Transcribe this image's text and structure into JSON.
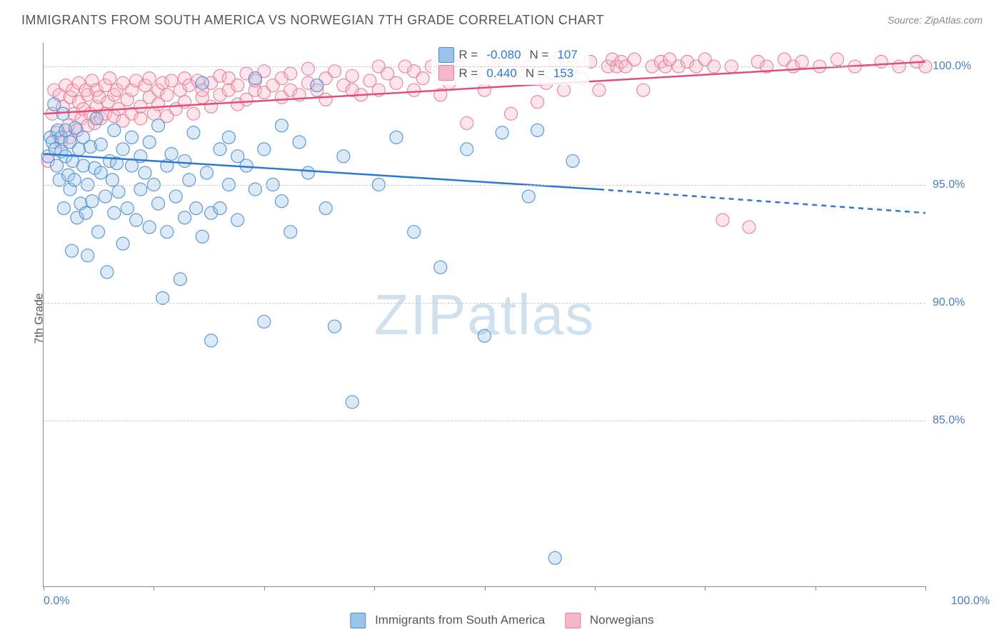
{
  "title": "IMMIGRANTS FROM SOUTH AMERICA VS NORWEGIAN 7TH GRADE CORRELATION CHART",
  "source_label": "Source:",
  "source_value": "ZipAtlas.com",
  "watermark": "ZIPatlas",
  "yaxis_title": "7th Grade",
  "chart": {
    "type": "scatter",
    "background_color": "#ffffff",
    "grid_color": "#cccccc",
    "axis_color": "#888888",
    "xlim": [
      0,
      100
    ],
    "ylim": [
      78,
      101
    ],
    "xtick_positions": [
      0,
      12.5,
      25,
      37.5,
      50,
      62.5,
      75,
      87.5,
      100
    ],
    "xtick_labels_visible": {
      "0": "0.0%",
      "100": "100.0%"
    },
    "ytick_positions": [
      85,
      90,
      95,
      100
    ],
    "ytick_labels": {
      "85": "85.0%",
      "90": "90.0%",
      "95": "95.0%",
      "100": "100.0%"
    },
    "tick_label_color": "#4a7ebb",
    "tick_label_fontsize": 16,
    "marker_radius": 9,
    "marker_fill_opacity": 0.35,
    "marker_stroke_opacity": 0.9,
    "marker_stroke_width": 1.2,
    "series": [
      {
        "id": "immigrants_sa",
        "label": "Immigrants from South America",
        "color_fill": "#9cc3e8",
        "color_stroke": "#4a8fd3",
        "trend": {
          "solid_from_x": 0,
          "solid_to_x": 63,
          "dashed_to_x": 100,
          "y_start": 96.3,
          "y_at_solid_end": 94.8,
          "y_end": 93.8,
          "stroke": "#2e78d2",
          "width": 2.5
        },
        "correlation": {
          "R_label": "R =",
          "R": "-0.080",
          "N_label": "N =",
          "N": "107"
        },
        "points": [
          [
            0.5,
            96.2
          ],
          [
            0.8,
            97.0
          ],
          [
            1.0,
            96.8
          ],
          [
            1.2,
            98.4
          ],
          [
            1.3,
            96.5
          ],
          [
            1.5,
            95.8
          ],
          [
            1.6,
            97.3
          ],
          [
            1.8,
            95.2
          ],
          [
            2.0,
            97.0
          ],
          [
            2.0,
            96.4
          ],
          [
            2.2,
            98.0
          ],
          [
            2.3,
            94.0
          ],
          [
            2.5,
            96.2
          ],
          [
            2.5,
            97.3
          ],
          [
            2.8,
            95.4
          ],
          [
            3.0,
            96.8
          ],
          [
            3.0,
            94.8
          ],
          [
            3.2,
            92.2
          ],
          [
            3.3,
            96.0
          ],
          [
            3.5,
            95.2
          ],
          [
            3.6,
            97.4
          ],
          [
            3.8,
            93.6
          ],
          [
            4.0,
            96.5
          ],
          [
            4.2,
            94.2
          ],
          [
            4.5,
            95.8
          ],
          [
            4.5,
            97.0
          ],
          [
            4.8,
            93.8
          ],
          [
            5.0,
            92.0
          ],
          [
            5.0,
            95.0
          ],
          [
            5.3,
            96.6
          ],
          [
            5.5,
            94.3
          ],
          [
            5.8,
            95.7
          ],
          [
            6.0,
            97.8
          ],
          [
            6.2,
            93.0
          ],
          [
            6.5,
            95.5
          ],
          [
            6.5,
            96.7
          ],
          [
            7.0,
            94.5
          ],
          [
            7.2,
            91.3
          ],
          [
            7.5,
            96.0
          ],
          [
            7.8,
            95.2
          ],
          [
            8.0,
            97.3
          ],
          [
            8.0,
            93.8
          ],
          [
            8.3,
            95.9
          ],
          [
            8.5,
            94.7
          ],
          [
            9.0,
            96.5
          ],
          [
            9.0,
            92.5
          ],
          [
            9.5,
            94.0
          ],
          [
            10.0,
            95.8
          ],
          [
            10.0,
            97.0
          ],
          [
            10.5,
            93.5
          ],
          [
            11.0,
            96.2
          ],
          [
            11.0,
            94.8
          ],
          [
            11.5,
            95.5
          ],
          [
            12.0,
            93.2
          ],
          [
            12.0,
            96.8
          ],
          [
            12.5,
            95.0
          ],
          [
            13.0,
            97.5
          ],
          [
            13.0,
            94.2
          ],
          [
            13.5,
            90.2
          ],
          [
            14.0,
            95.8
          ],
          [
            14.0,
            93.0
          ],
          [
            14.5,
            96.3
          ],
          [
            15.0,
            94.5
          ],
          [
            15.5,
            91.0
          ],
          [
            16.0,
            96.0
          ],
          [
            16.0,
            93.6
          ],
          [
            16.5,
            95.2
          ],
          [
            17.0,
            97.2
          ],
          [
            17.3,
            94.0
          ],
          [
            18.0,
            92.8
          ],
          [
            18.0,
            99.3
          ],
          [
            18.5,
            95.5
          ],
          [
            19.0,
            93.8
          ],
          [
            19.0,
            88.4
          ],
          [
            20.0,
            96.5
          ],
          [
            20.0,
            94.0
          ],
          [
            21.0,
            95.0
          ],
          [
            21.0,
            97.0
          ],
          [
            22.0,
            93.5
          ],
          [
            22.0,
            96.2
          ],
          [
            23.0,
            95.8
          ],
          [
            24.0,
            94.8
          ],
          [
            24.0,
            99.5
          ],
          [
            25.0,
            96.5
          ],
          [
            25.0,
            89.2
          ],
          [
            26.0,
            95.0
          ],
          [
            27.0,
            97.5
          ],
          [
            27.0,
            94.3
          ],
          [
            28.0,
            93.0
          ],
          [
            29.0,
            96.8
          ],
          [
            30.0,
            95.5
          ],
          [
            31.0,
            99.2
          ],
          [
            32.0,
            94.0
          ],
          [
            33.0,
            89.0
          ],
          [
            34.0,
            96.2
          ],
          [
            35.0,
            85.8
          ],
          [
            38.0,
            95.0
          ],
          [
            40.0,
            97.0
          ],
          [
            42.0,
            93.0
          ],
          [
            45.0,
            91.5
          ],
          [
            48.0,
            96.5
          ],
          [
            50.0,
            88.6
          ],
          [
            52.0,
            97.2
          ],
          [
            55.0,
            94.5
          ],
          [
            56.0,
            97.3
          ],
          [
            58.0,
            79.2
          ],
          [
            60.0,
            96.0
          ]
        ]
      },
      {
        "id": "norwegians",
        "label": "Norwegians",
        "color_fill": "#f5b8c8",
        "color_stroke": "#e77a9a",
        "trend": {
          "solid_from_x": 0,
          "solid_to_x": 100,
          "dashed_to_x": 100,
          "y_start": 98.0,
          "y_at_solid_end": 100.2,
          "y_end": 100.2,
          "stroke": "#e04f7a",
          "width": 2.5
        },
        "correlation": {
          "R_label": "R =",
          "R": "0.440",
          "N_label": "N =",
          "N": "153"
        },
        "points": [
          [
            0.5,
            96.0
          ],
          [
            1.0,
            98.0
          ],
          [
            1.2,
            99.0
          ],
          [
            1.5,
            97.2
          ],
          [
            1.8,
            98.8
          ],
          [
            2.0,
            96.8
          ],
          [
            2.2,
            98.3
          ],
          [
            2.5,
            99.2
          ],
          [
            2.8,
            97.5
          ],
          [
            3.0,
            98.7
          ],
          [
            3.0,
            97.0
          ],
          [
            3.3,
            99.0
          ],
          [
            3.5,
            98.0
          ],
          [
            3.8,
            97.3
          ],
          [
            4.0,
            98.5
          ],
          [
            4.0,
            99.3
          ],
          [
            4.3,
            97.8
          ],
          [
            4.5,
            98.2
          ],
          [
            4.8,
            99.0
          ],
          [
            5.0,
            97.5
          ],
          [
            5.0,
            98.8
          ],
          [
            5.3,
            98.0
          ],
          [
            5.5,
            99.4
          ],
          [
            5.8,
            97.6
          ],
          [
            6.0,
            98.3
          ],
          [
            6.0,
            99.0
          ],
          [
            6.3,
            98.7
          ],
          [
            6.5,
            97.8
          ],
          [
            7.0,
            99.2
          ],
          [
            7.0,
            98.0
          ],
          [
            7.3,
            98.5
          ],
          [
            7.5,
            99.5
          ],
          [
            8.0,
            97.9
          ],
          [
            8.0,
            98.8
          ],
          [
            8.3,
            99.0
          ],
          [
            8.5,
            98.2
          ],
          [
            9.0,
            99.3
          ],
          [
            9.0,
            97.7
          ],
          [
            9.5,
            98.6
          ],
          [
            10.0,
            99.0
          ],
          [
            10.0,
            98.0
          ],
          [
            10.5,
            99.4
          ],
          [
            11.0,
            98.3
          ],
          [
            11.0,
            97.8
          ],
          [
            11.5,
            99.2
          ],
          [
            12.0,
            98.7
          ],
          [
            12.0,
            99.5
          ],
          [
            12.5,
            98.0
          ],
          [
            13.0,
            99.0
          ],
          [
            13.0,
            98.4
          ],
          [
            13.5,
            99.3
          ],
          [
            14.0,
            97.9
          ],
          [
            14.0,
            98.8
          ],
          [
            14.5,
            99.4
          ],
          [
            15.0,
            98.2
          ],
          [
            15.5,
            99.0
          ],
          [
            16.0,
            99.5
          ],
          [
            16.0,
            98.5
          ],
          [
            16.5,
            99.2
          ],
          [
            17.0,
            98.0
          ],
          [
            17.5,
            99.4
          ],
          [
            18.0,
            98.7
          ],
          [
            18.0,
            99.0
          ],
          [
            19.0,
            99.3
          ],
          [
            19.0,
            98.3
          ],
          [
            20.0,
            99.6
          ],
          [
            20.0,
            98.8
          ],
          [
            21.0,
            99.0
          ],
          [
            21.0,
            99.5
          ],
          [
            22.0,
            98.4
          ],
          [
            22.0,
            99.2
          ],
          [
            23.0,
            99.7
          ],
          [
            23.0,
            98.6
          ],
          [
            24.0,
            99.0
          ],
          [
            24.0,
            99.4
          ],
          [
            25.0,
            98.9
          ],
          [
            25.0,
            99.8
          ],
          [
            26.0,
            99.2
          ],
          [
            27.0,
            99.5
          ],
          [
            27.0,
            98.7
          ],
          [
            28.0,
            99.0
          ],
          [
            28.0,
            99.7
          ],
          [
            29.0,
            98.8
          ],
          [
            30.0,
            99.3
          ],
          [
            30.0,
            99.9
          ],
          [
            31.0,
            99.0
          ],
          [
            32.0,
            99.5
          ],
          [
            32.0,
            98.6
          ],
          [
            33.0,
            99.8
          ],
          [
            34.0,
            99.2
          ],
          [
            35.0,
            99.0
          ],
          [
            35.0,
            99.6
          ],
          [
            36.0,
            98.8
          ],
          [
            37.0,
            99.4
          ],
          [
            38.0,
            100.0
          ],
          [
            38.0,
            99.0
          ],
          [
            39.0,
            99.7
          ],
          [
            40.0,
            99.3
          ],
          [
            41.0,
            100.0
          ],
          [
            42.0,
            99.0
          ],
          [
            42.0,
            99.8
          ],
          [
            43.0,
            99.5
          ],
          [
            44.0,
            100.0
          ],
          [
            45.0,
            98.8
          ],
          [
            46.0,
            99.3
          ],
          [
            47.0,
            100.0
          ],
          [
            48.0,
            97.6
          ],
          [
            49.0,
            99.8
          ],
          [
            50.0,
            99.0
          ],
          [
            51.0,
            100.2
          ],
          [
            52.0,
            99.5
          ],
          [
            53.0,
            98.0
          ],
          [
            54.0,
            99.8
          ],
          [
            55.0,
            100.0
          ],
          [
            56.0,
            98.5
          ],
          [
            57.0,
            99.3
          ],
          [
            58.0,
            100.2
          ],
          [
            59.0,
            99.0
          ],
          [
            60.0,
            100.0
          ],
          [
            61.0,
            99.5
          ],
          [
            62.0,
            100.2
          ],
          [
            63.0,
            99.0
          ],
          [
            64.0,
            100.0
          ],
          [
            64.5,
            100.3
          ],
          [
            65.0,
            100.0
          ],
          [
            65.5,
            100.2
          ],
          [
            66.0,
            100.0
          ],
          [
            67.0,
            100.3
          ],
          [
            68.0,
            99.0
          ],
          [
            69.0,
            100.0
          ],
          [
            70.0,
            100.2
          ],
          [
            70.5,
            100.0
          ],
          [
            71.0,
            100.3
          ],
          [
            72.0,
            100.0
          ],
          [
            73.0,
            100.2
          ],
          [
            74.0,
            100.0
          ],
          [
            75.0,
            100.3
          ],
          [
            76.0,
            100.0
          ],
          [
            77.0,
            93.5
          ],
          [
            78.0,
            100.0
          ],
          [
            80.0,
            93.2
          ],
          [
            81.0,
            100.2
          ],
          [
            82.0,
            100.0
          ],
          [
            84.0,
            100.3
          ],
          [
            85.0,
            100.0
          ],
          [
            86.0,
            100.2
          ],
          [
            88.0,
            100.0
          ],
          [
            90.0,
            100.3
          ],
          [
            92.0,
            100.0
          ],
          [
            95.0,
            100.2
          ],
          [
            97.0,
            100.0
          ],
          [
            99.0,
            100.2
          ],
          [
            100.0,
            100.0
          ]
        ]
      }
    ]
  },
  "corr_box": {
    "left_pct": 44,
    "top_pct": 0
  },
  "legend": {
    "swatch_blue_fill": "#9cc3e8",
    "swatch_blue_stroke": "#4a8fd3",
    "swatch_pink_fill": "#f5b8c8",
    "swatch_pink_stroke": "#e77a9a"
  }
}
